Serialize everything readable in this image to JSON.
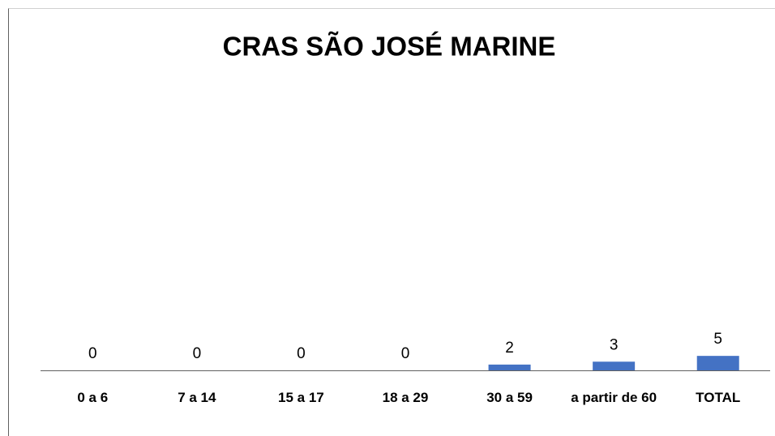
{
  "chart_data": {
    "type": "bar",
    "title": "CRAS SÃO JOSÉ MARINE",
    "categories": [
      "0 a 6",
      "7 a 14",
      "15 a 17",
      "18 a 29",
      "30 a 59",
      "a partir de 60",
      "TOTAL"
    ],
    "values": [
      0,
      0,
      0,
      0,
      2,
      3,
      5
    ],
    "color": "#4472c4",
    "ylim": [
      0,
      100
    ]
  }
}
